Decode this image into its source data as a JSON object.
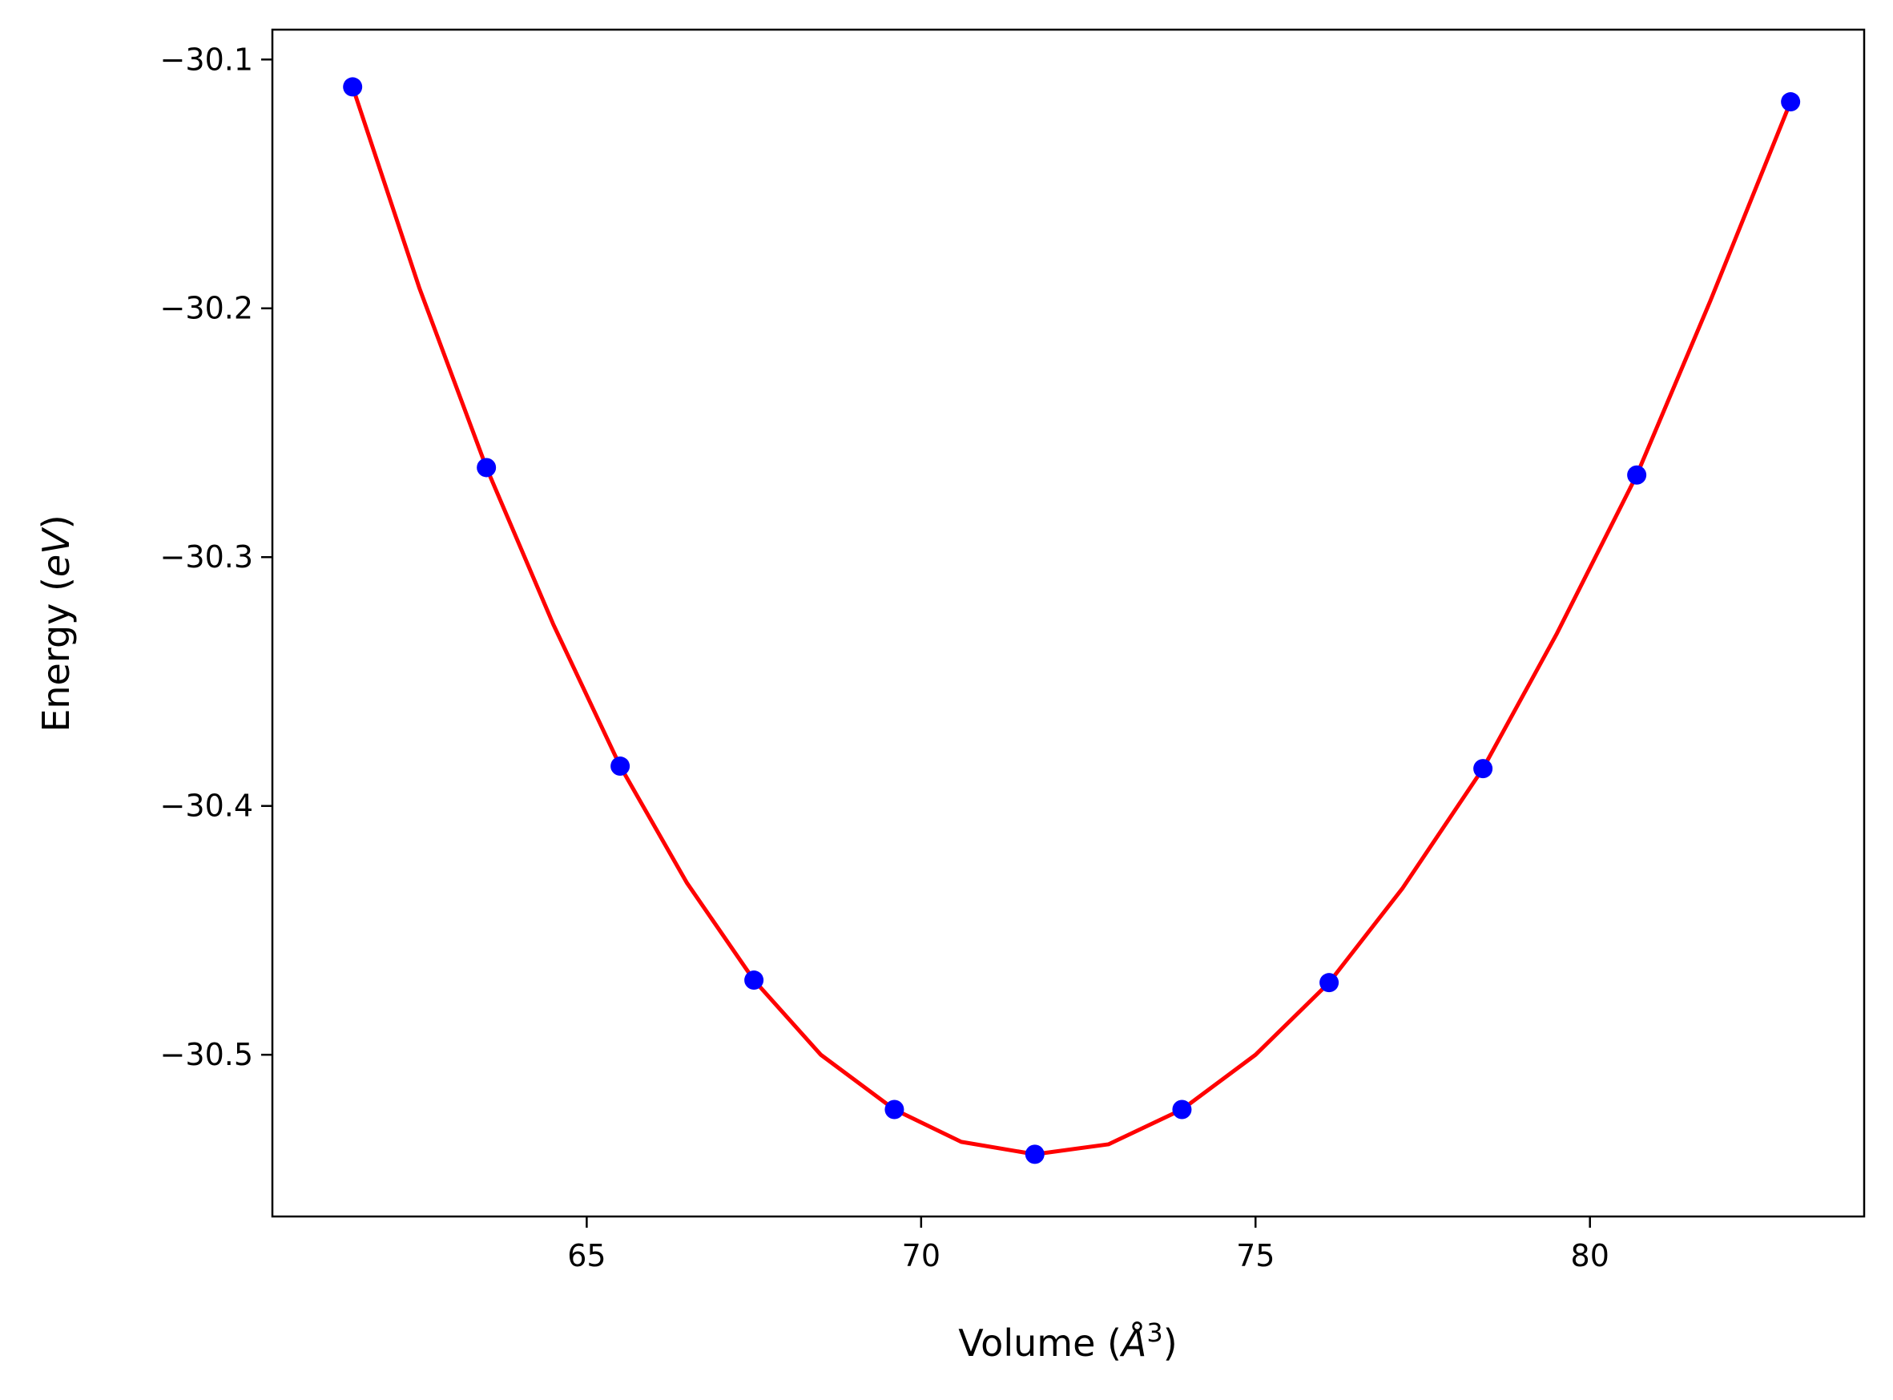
{
  "chart_data": {
    "type": "scatter",
    "title": "",
    "xlabel_main": "Volume (",
    "xlabel_unit": "Å",
    "xlabel_exp": "3",
    "xlabel_close": ")",
    "ylabel_main": "Energy (",
    "ylabel_unit": "eV",
    "ylabel_close": ")",
    "xlim": [
      60.3,
      84.1
    ],
    "ylim": [
      -30.565,
      -30.088
    ],
    "xticks": [
      65,
      70,
      75,
      80
    ],
    "xtick_labels": [
      "65",
      "70",
      "75",
      "80"
    ],
    "yticks": [
      -30.1,
      -30.2,
      -30.3,
      -30.4,
      -30.5
    ],
    "ytick_labels": [
      "−30.1",
      "−30.2",
      "−30.3",
      "−30.4",
      "−30.5"
    ],
    "grid": false,
    "series": [
      {
        "kind": "points",
        "color": "#0000ff",
        "x": [
          61.5,
          63.5,
          65.5,
          67.5,
          69.6,
          71.7,
          73.9,
          76.1,
          78.4,
          80.7,
          83.0
        ],
        "y": [
          -30.111,
          -30.264,
          -30.384,
          -30.47,
          -30.522,
          -30.54,
          -30.522,
          -30.471,
          -30.385,
          -30.267,
          -30.117
        ]
      },
      {
        "kind": "fit-line",
        "color": "#ff0000",
        "x": [
          61.5,
          62.5,
          63.5,
          64.5,
          65.5,
          66.5,
          67.5,
          68.5,
          69.6,
          70.6,
          71.7,
          72.8,
          73.9,
          75.0,
          76.1,
          77.2,
          78.4,
          79.5,
          80.7,
          81.8,
          83.0
        ],
        "y": [
          -30.111,
          -30.192,
          -30.264,
          -30.327,
          -30.384,
          -30.431,
          -30.47,
          -30.5,
          -30.522,
          -30.535,
          -30.54,
          -30.536,
          -30.522,
          -30.5,
          -30.471,
          -30.433,
          -30.385,
          -30.331,
          -30.267,
          -30.197,
          -30.117
        ]
      }
    ]
  }
}
